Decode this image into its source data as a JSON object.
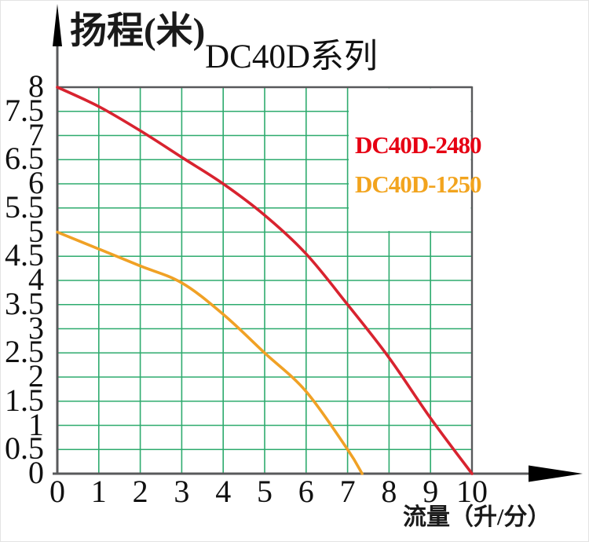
{
  "chart_data": {
    "type": "line",
    "title": "DC40D系列",
    "ylabel": "扬程(米)",
    "xlabel": "流量（升/分）",
    "xlim": [
      0,
      10
    ],
    "ylim": [
      0,
      8
    ],
    "x_ticks": [
      0,
      1,
      2,
      3,
      4,
      5,
      6,
      7,
      8,
      9,
      10
    ],
    "y_ticks": [
      8,
      7.5,
      7,
      6.5,
      6,
      5.5,
      5,
      4.5,
      4,
      3.5,
      3,
      2.5,
      2,
      1.5,
      1,
      0.5,
      0
    ],
    "grid": true,
    "grid_color": "#2eab6e",
    "axis_color": "#58595b",
    "tick_color": "#111111",
    "legend_position": "top-right",
    "series": [
      {
        "name": "DC40D-2480",
        "color": "#d8232f",
        "label_color": "#e60013",
        "x": [
          0,
          1,
          2,
          3,
          4,
          5,
          6,
          7,
          8,
          9,
          10
        ],
        "y": [
          8.0,
          7.6,
          7.1,
          6.55,
          6.0,
          5.35,
          4.55,
          3.5,
          2.4,
          1.15,
          0.0
        ]
      },
      {
        "name": "DC40D-1250",
        "color": "#f0a125",
        "label_color": "#f2a41e",
        "x": [
          0,
          1,
          2,
          3,
          4,
          5,
          6,
          7,
          7.35
        ],
        "y": [
          5.0,
          4.65,
          4.3,
          3.95,
          3.3,
          2.5,
          1.7,
          0.5,
          0.0
        ]
      }
    ]
  }
}
